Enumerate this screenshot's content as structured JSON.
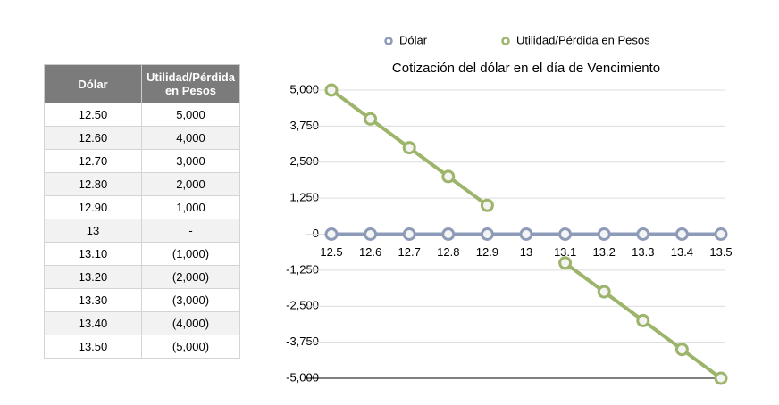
{
  "table": {
    "headers": [
      "Dólar",
      "Utilidad/Pérdida en Pesos"
    ],
    "rows": [
      [
        "12.50",
        "5,000"
      ],
      [
        "12.60",
        "4,000"
      ],
      [
        "12.70",
        "3,000"
      ],
      [
        "12.80",
        "2,000"
      ],
      [
        "12.90",
        "1,000"
      ],
      [
        "13",
        "-"
      ],
      [
        "13.10",
        "(1,000)"
      ],
      [
        "13.20",
        "(2,000)"
      ],
      [
        "13.30",
        "(3,000)"
      ],
      [
        "13.40",
        "(4,000)"
      ],
      [
        "13.50",
        "(5,000)"
      ]
    ]
  },
  "chart_data": {
    "type": "line",
    "title": "Cotización del dólar en el día de Vencimiento",
    "categories": [
      "12.5",
      "12.6",
      "12.7",
      "12.8",
      "12.9",
      "13",
      "13.1",
      "13.2",
      "13.3",
      "13.4",
      "13.5"
    ],
    "series": [
      {
        "name": "Dólar",
        "color": "#8e9bb8",
        "values": [
          0,
          0,
          0,
          0,
          0,
          0,
          0,
          0,
          0,
          0,
          0
        ]
      },
      {
        "name": "Utilidad/Pérdida en Pesos",
        "color": "#9cb56a",
        "values": [
          5000,
          4000,
          3000,
          2000,
          1000,
          null,
          -1000,
          -2000,
          -3000,
          -4000,
          -5000
        ]
      }
    ],
    "ylim": [
      -5000,
      5000
    ],
    "yticks": [
      {
        "value": -5000,
        "label": "-5,000"
      },
      {
        "value": -3750,
        "label": "-3,750"
      },
      {
        "value": -2500,
        "label": "-2,500"
      },
      {
        "value": -1250,
        "label": "-1,250"
      },
      0,
      {
        "value": 1250,
        "label": "1,250"
      },
      {
        "value": 2500,
        "label": "2,500"
      },
      {
        "value": 3750,
        "label": "3,750"
      },
      {
        "value": 5000,
        "label": "5,000"
      }
    ],
    "grid": true,
    "legend": "top"
  }
}
